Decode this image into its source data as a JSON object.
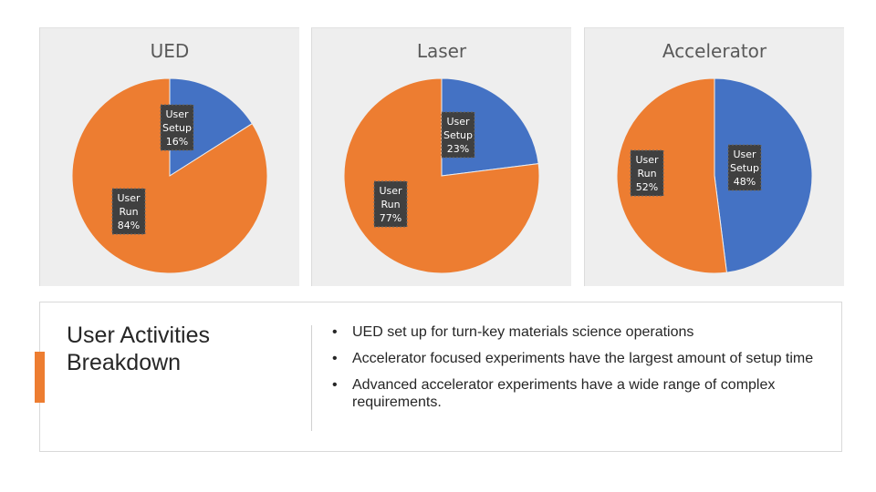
{
  "chart_data": [
    {
      "type": "pie",
      "title": "UED",
      "categories": [
        "User Setup",
        "User Run"
      ],
      "values": [
        16,
        84
      ],
      "unit": "%",
      "labels": [
        {
          "name": "User",
          "sub": "Setup",
          "pct": "16%"
        },
        {
          "name": "User",
          "sub": "Run",
          "pct": "84%"
        }
      ],
      "colors": [
        "#4472c4",
        "#ed7d31"
      ]
    },
    {
      "type": "pie",
      "title": "Laser",
      "categories": [
        "User Setup",
        "User Run"
      ],
      "values": [
        23,
        77
      ],
      "unit": "%",
      "labels": [
        {
          "name": "User",
          "sub": "Setup",
          "pct": "23%"
        },
        {
          "name": "User",
          "sub": "Run",
          "pct": "77%"
        }
      ],
      "colors": [
        "#4472c4",
        "#ed7d31"
      ]
    },
    {
      "type": "pie",
      "title": "Accelerator",
      "categories": [
        "User Setup",
        "User Run"
      ],
      "values": [
        48,
        52
      ],
      "unit": "%",
      "labels": [
        {
          "name": "User",
          "sub": "Setup",
          "pct": "48%"
        },
        {
          "name": "User",
          "sub": "Run",
          "pct": "52%"
        }
      ],
      "colors": [
        "#4472c4",
        "#ed7d31"
      ]
    }
  ],
  "section": {
    "title": "User Activities Breakdown",
    "bullet_char": "•",
    "bullets": [
      "UED set up for turn-key materials science operations",
      "Accelerator focused experiments have the largest amount of setup time",
      "Advanced accelerator experiments have a wide range of complex requirements."
    ]
  },
  "colors": {
    "accent": "#ed7d31",
    "setup": "#4472c4",
    "run": "#ed7d31"
  }
}
